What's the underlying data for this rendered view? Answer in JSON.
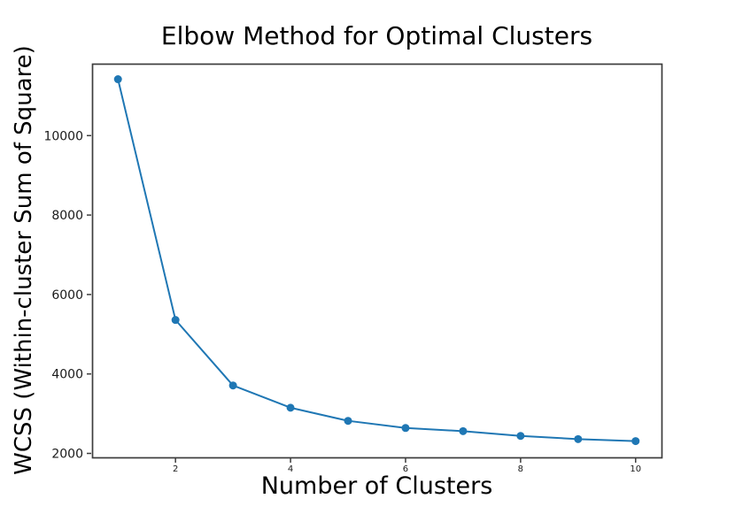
{
  "figure": {
    "background": "#ffffff"
  },
  "chart_data": {
    "type": "line",
    "title": "Elbow Method for Optimal Clusters",
    "xlabel": "Number of Clusters",
    "ylabel": "WCSS (Within-cluster Sum of Square)",
    "x": [
      1,
      2,
      3,
      4,
      5,
      6,
      7,
      8,
      9,
      10
    ],
    "series": [
      {
        "name": "WCSS",
        "values": [
          11420,
          5360,
          3710,
          3150,
          2820,
          2640,
          2560,
          2440,
          2360,
          2310
        ]
      }
    ],
    "xticks": [
      2,
      4,
      6,
      8,
      10
    ],
    "yticks": [
      2000,
      4000,
      6000,
      8000,
      10000
    ],
    "xlim": [
      0.55,
      10.45
    ],
    "ylim": [
      1900,
      11810
    ],
    "grid": false,
    "legend_position": "none",
    "line_color": "#1f77b4",
    "marker": "circle",
    "spine_color": "#3d3d3d"
  }
}
